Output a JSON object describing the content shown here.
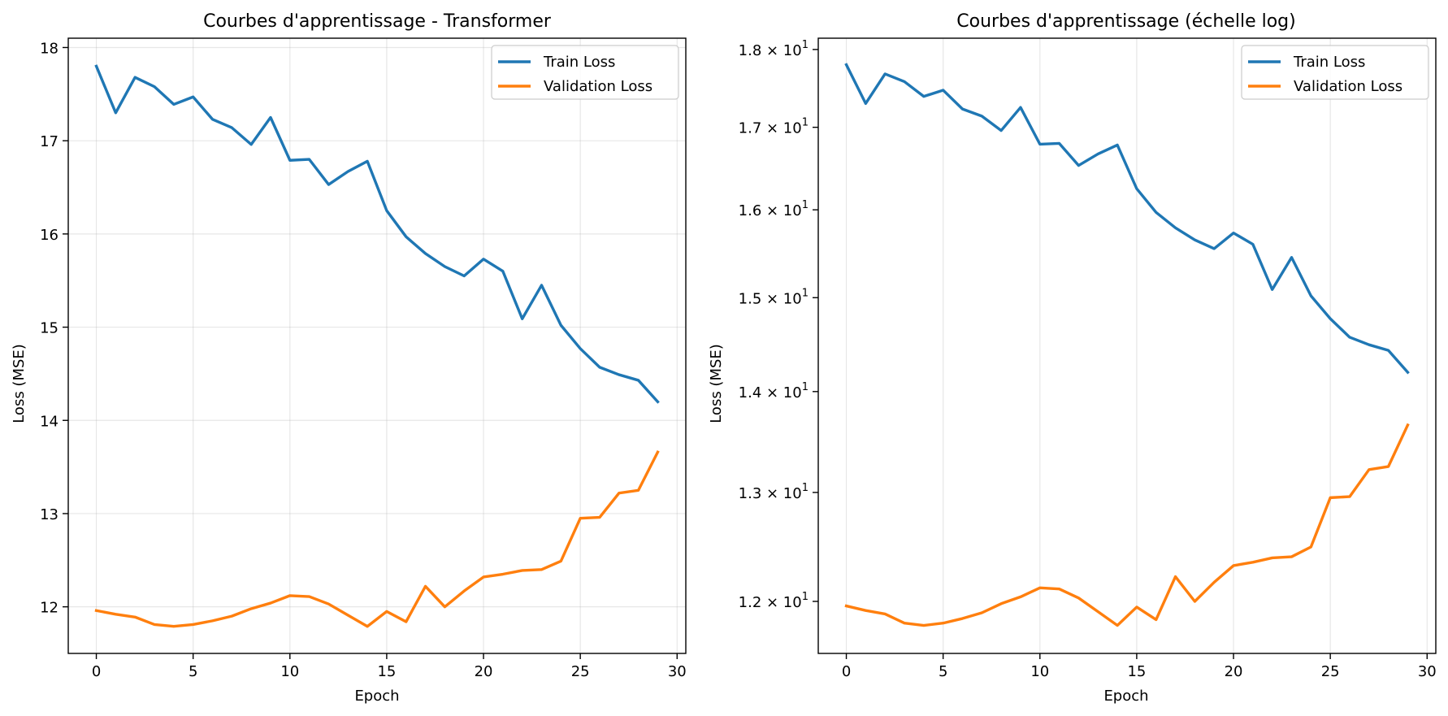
{
  "colors": {
    "train": "#1f77b4",
    "validation": "#ff7f0e"
  },
  "chart_data": [
    {
      "type": "line",
      "title": "Courbes d'apprentissage - Transformer",
      "xlabel": "Epoch",
      "ylabel": "Loss (MSE)",
      "xlim": [
        -1.45,
        30.45
      ],
      "ylim": [
        11.5,
        18.1
      ],
      "yscale": "linear",
      "xticks": [
        0,
        5,
        10,
        15,
        20,
        25,
        30
      ],
      "yticks": [
        12,
        13,
        14,
        15,
        16,
        17,
        18
      ],
      "ytick_labels": [
        "12",
        "13",
        "14",
        "15",
        "16",
        "17",
        "18"
      ],
      "grid": true,
      "legend_position": "top-right",
      "x": [
        0,
        1,
        2,
        3,
        4,
        5,
        6,
        7,
        8,
        9,
        10,
        11,
        12,
        13,
        14,
        15,
        16,
        17,
        18,
        19,
        20,
        21,
        22,
        23,
        24,
        25,
        26,
        27,
        28,
        29
      ],
      "series": [
        {
          "name": "Train Loss",
          "values": [
            17.8,
            17.3,
            17.68,
            17.58,
            17.39,
            17.47,
            17.23,
            17.14,
            16.96,
            17.25,
            16.79,
            16.8,
            16.53,
            16.67,
            16.78,
            16.25,
            15.97,
            15.79,
            15.65,
            15.55,
            15.73,
            15.6,
            15.09,
            15.45,
            15.02,
            14.77,
            14.57,
            14.49,
            14.43,
            14.2
          ]
        },
        {
          "name": "Validation Loss",
          "values": [
            11.96,
            11.92,
            11.89,
            11.81,
            11.79,
            11.81,
            11.85,
            11.9,
            11.98,
            12.04,
            12.12,
            12.11,
            12.03,
            11.91,
            11.79,
            11.95,
            11.84,
            12.22,
            12.0,
            12.17,
            12.32,
            12.35,
            12.39,
            12.4,
            12.49,
            12.95,
            12.96,
            13.22,
            13.25,
            13.66
          ]
        }
      ]
    },
    {
      "type": "line",
      "title": "Courbes d'apprentissage (échelle log)",
      "xlabel": "Epoch",
      "ylabel": "Loss (MSE)",
      "xlim": [
        -1.45,
        30.45
      ],
      "ylim": [
        11.55,
        18.15
      ],
      "yscale": "log",
      "xticks": [
        0,
        5,
        10,
        15,
        20,
        25,
        30
      ],
      "yticks": [
        12,
        13,
        14,
        15,
        16,
        17,
        18
      ],
      "ytick_labels": [
        "1.2",
        "1.3",
        "1.4",
        "1.5",
        "1.6",
        "1.7",
        "1.8"
      ],
      "ytick_suffix": "× 10",
      "ytick_exponent": "1",
      "grid": true,
      "legend_position": "top-right",
      "x": [
        0,
        1,
        2,
        3,
        4,
        5,
        6,
        7,
        8,
        9,
        10,
        11,
        12,
        13,
        14,
        15,
        16,
        17,
        18,
        19,
        20,
        21,
        22,
        23,
        24,
        25,
        26,
        27,
        28,
        29
      ],
      "series": [
        {
          "name": "Train Loss",
          "values": [
            17.8,
            17.3,
            17.68,
            17.58,
            17.39,
            17.47,
            17.23,
            17.14,
            16.96,
            17.25,
            16.79,
            16.8,
            16.53,
            16.67,
            16.78,
            16.25,
            15.97,
            15.79,
            15.65,
            15.55,
            15.73,
            15.6,
            15.09,
            15.45,
            15.02,
            14.77,
            14.57,
            14.49,
            14.43,
            14.2
          ]
        },
        {
          "name": "Validation Loss",
          "values": [
            11.96,
            11.92,
            11.89,
            11.81,
            11.79,
            11.81,
            11.85,
            11.9,
            11.98,
            12.04,
            12.12,
            12.11,
            12.03,
            11.91,
            11.79,
            11.95,
            11.84,
            12.22,
            12.0,
            12.17,
            12.32,
            12.35,
            12.39,
            12.4,
            12.49,
            12.95,
            12.96,
            13.22,
            13.25,
            13.66
          ]
        }
      ]
    }
  ]
}
